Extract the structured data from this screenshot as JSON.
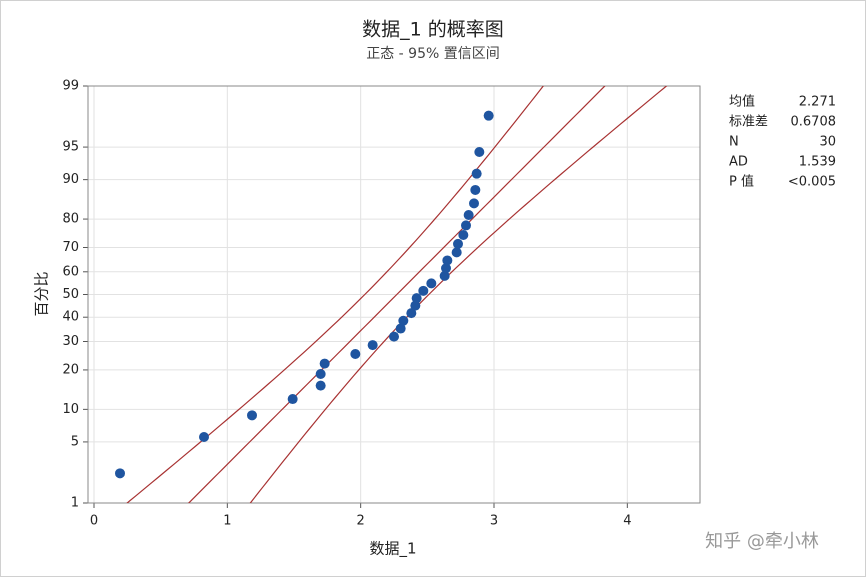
{
  "chart_data": {
    "type": "probability-plot",
    "title": "数据_1 的概率图",
    "subtitle": "正态 - 95% 置信区间",
    "x_label": "数据_1",
    "y_label": "百分比",
    "yscale": "normal-probability",
    "xlim": [
      -0.045,
      4.545
    ],
    "xticks": [
      0,
      1,
      2,
      3,
      4
    ],
    "ylim": [
      1,
      99
    ],
    "yticks": [
      1,
      5,
      10,
      20,
      30,
      40,
      50,
      60,
      70,
      80,
      90,
      95,
      99
    ],
    "grid": true,
    "point_color": "#1f55a0",
    "line_color": "#a83232",
    "x": [
      0.195,
      0.825,
      1.185,
      1.49,
      1.7,
      1.7,
      1.73,
      1.96,
      2.09,
      2.25,
      2.3,
      2.32,
      2.38,
      2.41,
      2.42,
      2.47,
      2.53,
      2.63,
      2.64,
      2.65,
      2.72,
      2.73,
      2.77,
      2.79,
      2.81,
      2.85,
      2.86,
      2.87,
      2.89,
      2.96
    ],
    "values": [
      2.3,
      5.59,
      8.88,
      12.17,
      15.46,
      18.75,
      22.04,
      25.33,
      28.62,
      31.91,
      35.2,
      38.49,
      41.78,
      45.07,
      48.36,
      51.64,
      54.93,
      58.22,
      61.51,
      64.8,
      68.09,
      71.38,
      74.67,
      77.96,
      81.25,
      84.54,
      87.83,
      91.12,
      94.41,
      97.7
    ],
    "stats": [
      {
        "label": "均值",
        "value": 2.271
      },
      {
        "label": "标准差",
        "value": 0.6708
      },
      {
        "label": "N",
        "value": 30
      },
      {
        "label": "AD",
        "value": 1.539
      },
      {
        "label": "P 值",
        "value": "<0.005"
      }
    ],
    "watermark": "知乎 @牵小林"
  }
}
